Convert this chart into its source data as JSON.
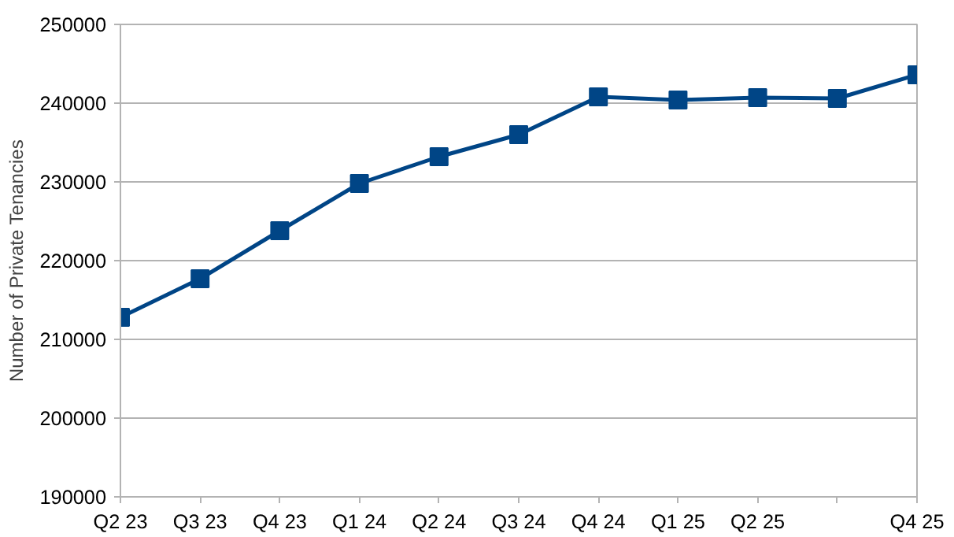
{
  "chart_data": {
    "type": "line",
    "ylabel": "Number of Private Tenancies",
    "categories": [
      "Q2 23",
      "Q3 23",
      "Q4 23",
      "Q1 24",
      "Q2 24",
      "Q3 24",
      "Q4 24",
      "Q1 25",
      "Q2 25",
      null,
      "Q4 25"
    ],
    "series": [
      {
        "color": "#004586",
        "values": [
          212800,
          217700,
          223800,
          229800,
          233200,
          236000,
          240800,
          240400,
          240700,
          240600,
          243600
        ]
      }
    ],
    "ylim": [
      190000,
      250000
    ],
    "yticks": [
      190000,
      200000,
      210000,
      220000,
      230000,
      240000,
      250000
    ],
    "grid": "y",
    "marker": "square",
    "line_style": "solid"
  }
}
